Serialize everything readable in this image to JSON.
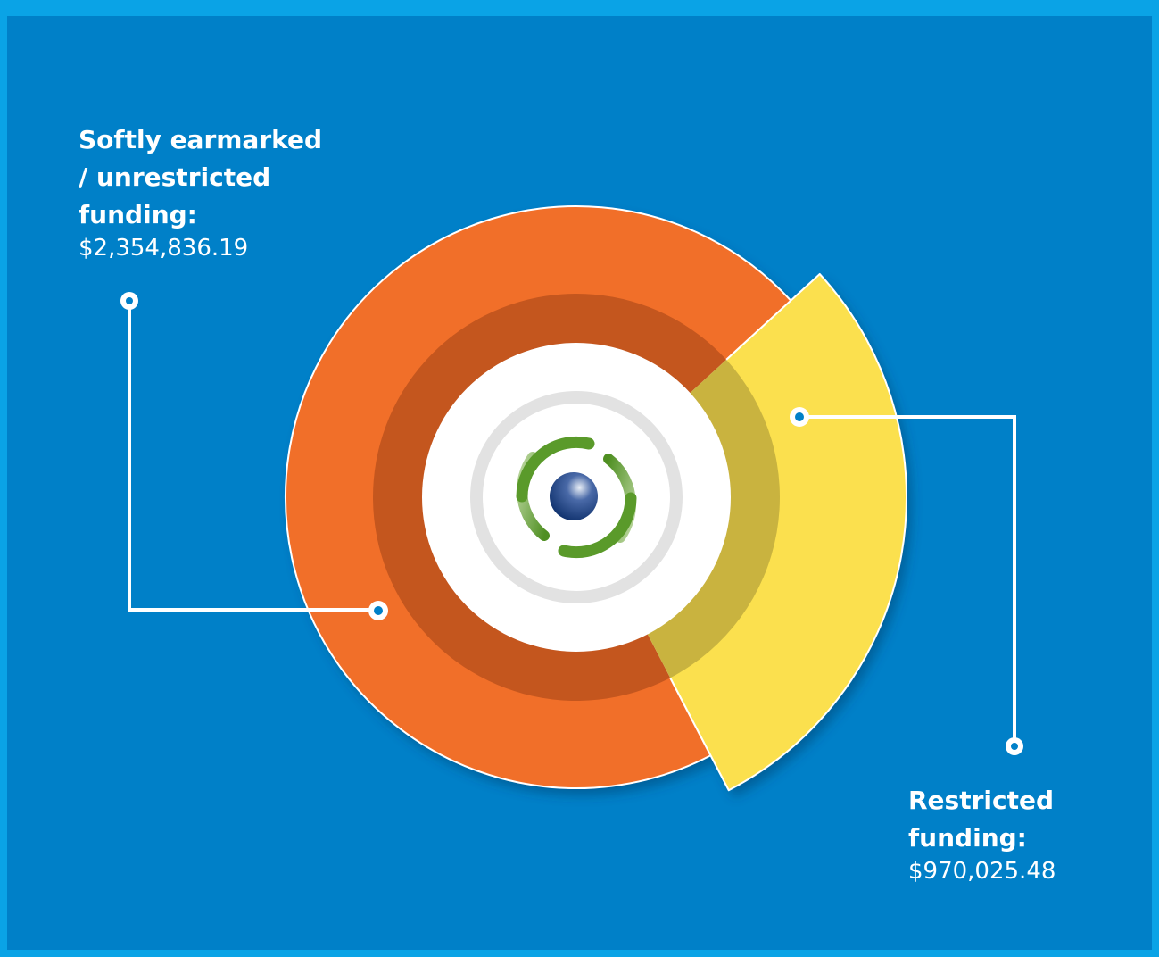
{
  "chart_data": {
    "type": "pie",
    "slices": [
      {
        "label_lines": [
          "Softly earmarked",
          "/ unrestricted",
          "funding:"
        ],
        "value": 2354836.19,
        "value_text": "$2,354,836.19",
        "color": "#f16f29",
        "inner_color": "#c4561e"
      },
      {
        "label_lines": [
          "Restricted",
          "funding:"
        ],
        "value": 970025.48,
        "value_text": "$970,025.48",
        "color": "#fbe04e",
        "inner_color": "#c9b33f"
      }
    ]
  },
  "colors": {
    "outer_border": "#0aa3e6",
    "background": "#0080c8",
    "center": "#ffffff",
    "center_ring": "#e2e2e2",
    "logo_green": "#5a9a2a",
    "logo_sphere": "#0d2f6b"
  },
  "center_icon": "organization-logo"
}
